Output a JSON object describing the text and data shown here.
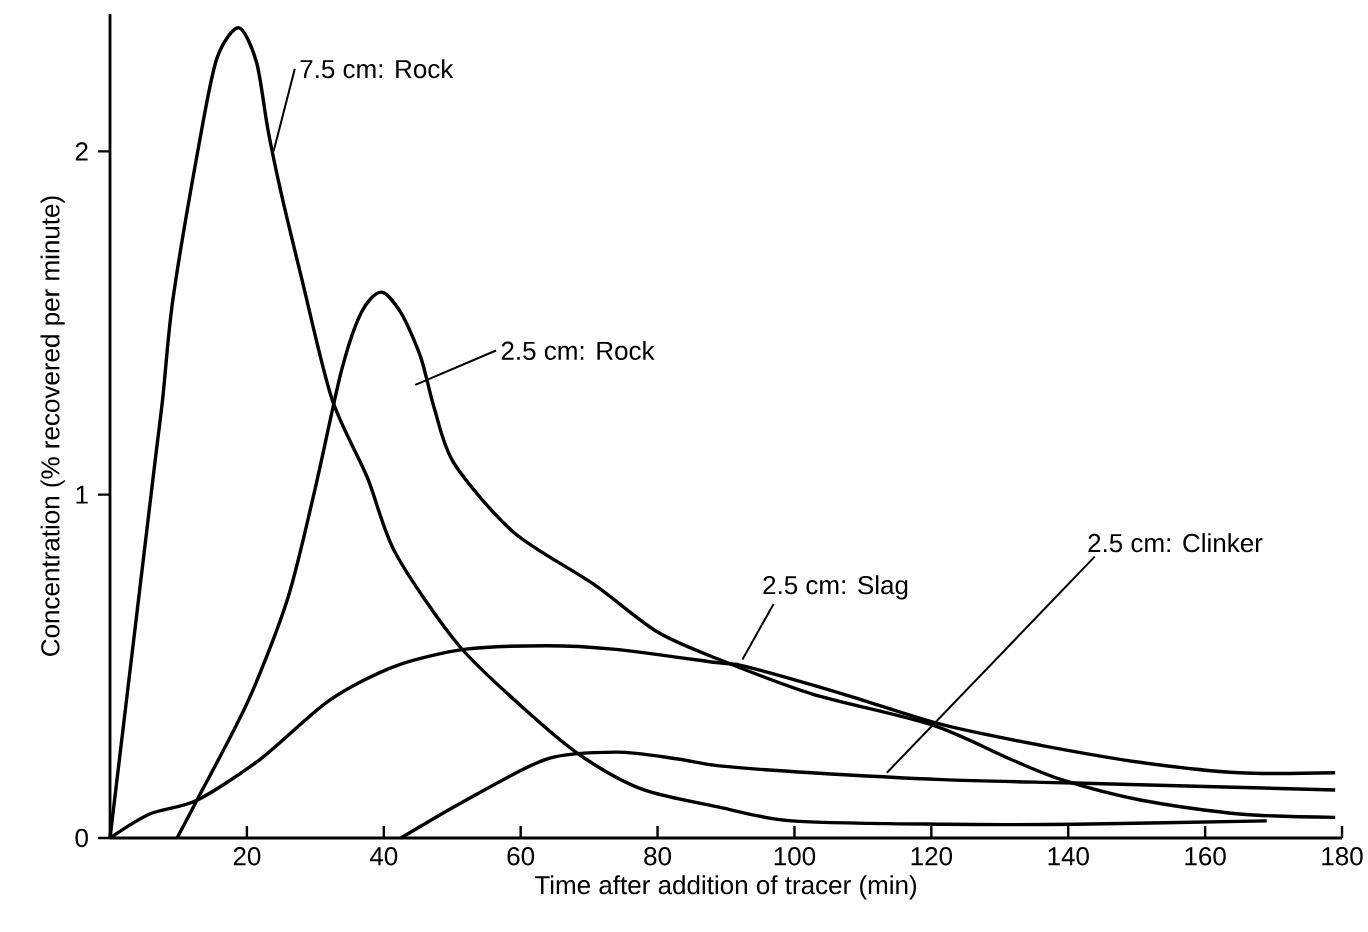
{
  "chart_data": {
    "type": "line",
    "xlabel": "Time after addition of tracer (min)",
    "ylabel": "Concentration (% recovered per minute)",
    "xlim": [
      0,
      180
    ],
    "ylim": [
      0,
      2.4
    ],
    "xticks": [
      20,
      40,
      60,
      80,
      100,
      120,
      140,
      160,
      180
    ],
    "yticks": [
      0,
      1,
      2
    ],
    "marker": "none",
    "line_style": "solid",
    "series": [
      {
        "name": "7.5 cm: Rock",
        "color": "#000000",
        "x": [
          0,
          6.3,
          7.7,
          9.2,
          13,
          15.6,
          18.8,
          21.4,
          23.1,
          25.1,
          28,
          32.4,
          37.6,
          41.7,
          51,
          62,
          69.5,
          78,
          89,
          99.6,
          121.6,
          141,
          169
        ],
        "values": [
          0,
          1.05,
          1.28,
          1.57,
          2.02,
          2.27,
          2.36,
          2.26,
          2.06,
          1.87,
          1.63,
          1.28,
          1.05,
          0.83,
          0.56,
          0.35,
          0.23,
          0.14,
          0.09,
          0.05,
          0.04,
          0.04,
          0.05
        ]
      },
      {
        "name": "2.5 cm: Rock",
        "color": "#000000",
        "x": [
          9.8,
          12.7,
          20.2,
          26,
          30,
          33.8,
          36.7,
          39.6,
          42.5,
          45.4,
          47.4,
          50.3,
          59,
          70.6,
          80,
          89,
          102.5,
          120,
          131.5,
          139,
          150.7,
          165,
          179
        ],
        "values": [
          0,
          0.11,
          0.4,
          0.7,
          1.02,
          1.36,
          1.53,
          1.59,
          1.53,
          1.4,
          1.25,
          1.09,
          0.89,
          0.74,
          0.6,
          0.52,
          0.42,
          0.33,
          0.23,
          0.17,
          0.11,
          0.07,
          0.06
        ]
      },
      {
        "name": "2.5 cm: Slag",
        "color": "#000000",
        "x": [
          0,
          5.8,
          12.7,
          22,
          32,
          41.6,
          52,
          63.8,
          73.5,
          89,
          92.8,
          107,
          121.6,
          136,
          150.7,
          165,
          179
        ],
        "values": [
          0,
          0.07,
          0.11,
          0.23,
          0.4,
          0.5,
          0.55,
          0.56,
          0.55,
          0.51,
          0.5,
          0.42,
          0.33,
          0.27,
          0.22,
          0.19,
          0.19
        ]
      },
      {
        "name": "2.5 cm: Clinker",
        "color": "#000000",
        "x": [
          42.5,
          52,
          63.8,
          74,
          83,
          89,
          102.5,
          121.6,
          141,
          160,
          179
        ],
        "values": [
          0,
          0.11,
          0.23,
          0.25,
          0.23,
          0.21,
          0.19,
          0.17,
          0.16,
          0.15,
          0.14
        ]
      }
    ]
  }
}
